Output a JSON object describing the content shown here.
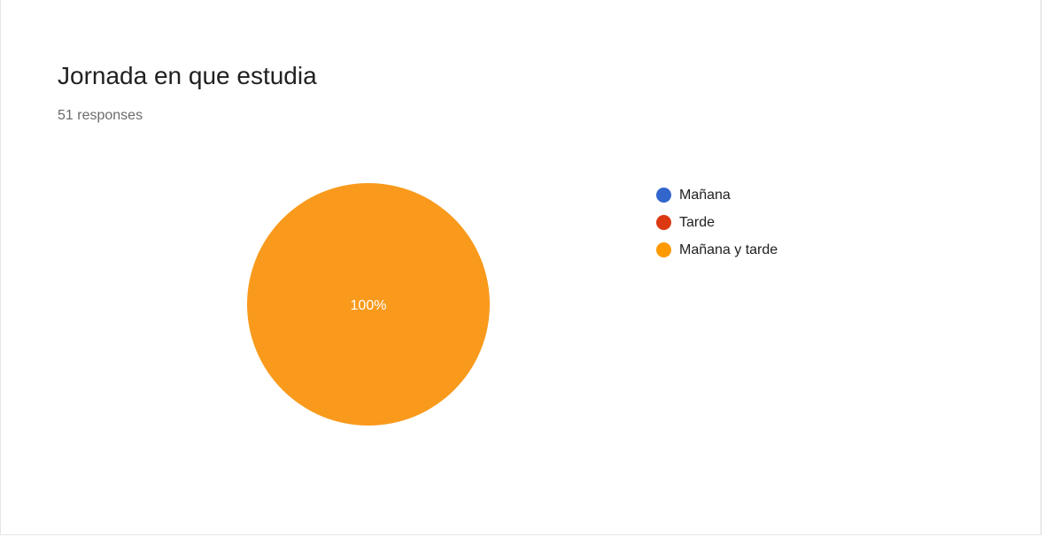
{
  "header": {
    "title": "Jornada en que estudia",
    "responses": "51 responses"
  },
  "chart_data": {
    "type": "pie",
    "categories": [
      "Mañana",
      "Tarde",
      "Mañana y tarde"
    ],
    "values": [
      0,
      0,
      100
    ],
    "colors": [
      "#3366cc",
      "#dc3912",
      "#ff9900"
    ],
    "data_labels": [
      "",
      "",
      "100%"
    ],
    "legend_position": "right"
  },
  "colors": {
    "pie_fill": "#f99a1c",
    "label_text": "#ffffff"
  }
}
